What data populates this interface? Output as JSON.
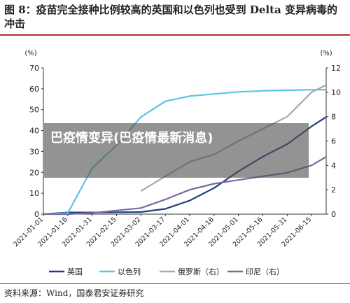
{
  "title": "图 8：疫苗完全接种比例较高的英国和以色列也受到 Delta 变异病毒的冲击",
  "source": "资料来源：Wind，国泰君安证券研究",
  "overlay_text": "巴疫情变异(巴疫情最新消息)",
  "chart_data": {
    "type": "line",
    "left_axis_unit": "(%)",
    "right_axis_unit": "(%)",
    "ylim_left": [
      0,
      70
    ],
    "ylim_right": [
      0,
      12
    ],
    "yticks_left": [
      "0",
      "10",
      "20",
      "30",
      "40",
      "50",
      "60",
      "70"
    ],
    "yticks_right": [
      "0",
      "2",
      "4",
      "6",
      "8",
      "10",
      "12"
    ],
    "grid": false,
    "legend_position": "bottom",
    "x_ticks": [
      "2021-01-01",
      "2021-01-16",
      "2021-01-31",
      "2021-02-15",
      "2021-03-02",
      "2021-03-17",
      "2021-04-01",
      "2021-04-16",
      "2021-05-01",
      "2021-05-16",
      "2021-05-31",
      "2021-06-15"
    ],
    "x": [
      "2021-01-01",
      "2021-01-16",
      "2021-01-31",
      "2021-02-15",
      "2021-03-02",
      "2021-03-17",
      "2021-04-01",
      "2021-04-16",
      "2021-05-01",
      "2021-05-16",
      "2021-05-31",
      "2021-06-15",
      "2021-06-24"
    ],
    "series": [
      {
        "name": "英国",
        "axis": "left",
        "color": "#1f3f7a",
        "values": [
          0,
          0.8,
          0.8,
          0.9,
          1.0,
          2.5,
          6.5,
          12.5,
          20.5,
          27.5,
          33.5,
          42.0,
          46.5
        ]
      },
      {
        "name": "以色列",
        "axis": "left",
        "color": "#5cc3e8",
        "values": [
          0,
          0.5,
          22.0,
          33.0,
          46.5,
          54.0,
          56.5,
          57.5,
          58.5,
          59.0,
          59.3,
          59.5,
          59.6
        ]
      },
      {
        "name": "俄罗斯（右）",
        "axis": "right",
        "color": "#a9a9a9",
        "values": [
          null,
          null,
          null,
          null,
          1.9,
          3.1,
          4.3,
          4.9,
          6.0,
          7.0,
          8.0,
          10.0,
          10.6
        ]
      },
      {
        "name": "印尼（右）",
        "axis": "right",
        "color": "#7a6aa6",
        "values": [
          0,
          0,
          0.1,
          0.3,
          0.5,
          1.2,
          2.0,
          2.5,
          2.8,
          3.1,
          3.4,
          4.0,
          4.7
        ]
      }
    ]
  }
}
